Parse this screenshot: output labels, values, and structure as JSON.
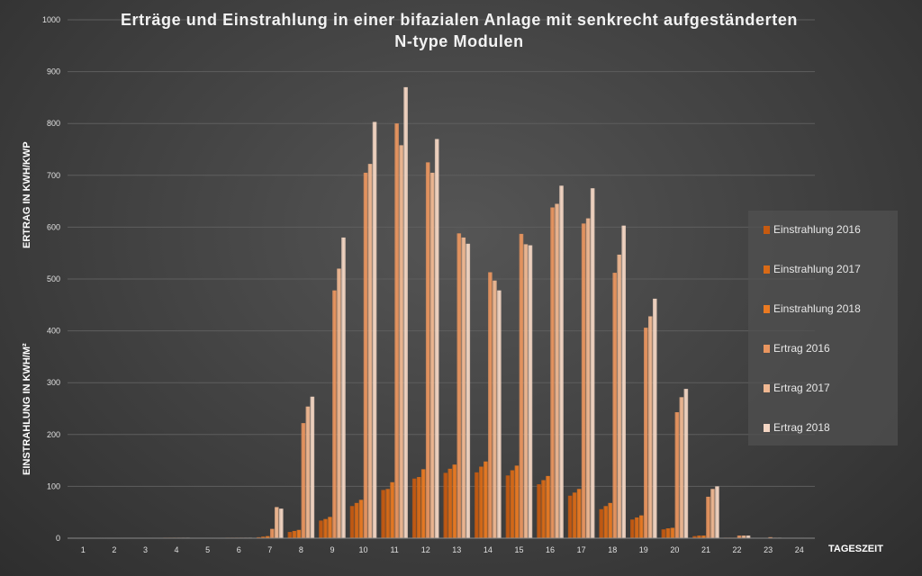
{
  "chart_data": {
    "type": "bar",
    "title_line1": "Erträge und Einstrahlung in einer bifazialen Anlage mit senkrecht aufgeständerten",
    "title_line2": "N-type Modulen",
    "ylabel_top": "ERTRAG IN KWH/KWP",
    "ylabel_bottom": "EINSTRAHLUNG IN KWH/M²",
    "xlabel": "TAGESZEIT",
    "ylim": [
      0,
      1000
    ],
    "yticks": [
      0,
      100,
      200,
      300,
      400,
      500,
      600,
      700,
      800,
      900,
      1000
    ],
    "categories": [
      "1",
      "2",
      "3",
      "4",
      "5",
      "6",
      "7",
      "8",
      "9",
      "10",
      "11",
      "12",
      "13",
      "14",
      "15",
      "16",
      "17",
      "18",
      "19",
      "20",
      "21",
      "22",
      "23",
      "24"
    ],
    "grid": true,
    "legend_position": "right",
    "series": [
      {
        "name": "Einstrahlung 2016",
        "color": "#c65a10",
        "values": [
          0,
          0,
          0,
          1,
          0,
          1,
          2,
          12,
          34,
          62,
          93,
          115,
          126,
          127,
          121,
          104,
          82,
          56,
          36,
          17,
          4,
          1,
          0,
          0
        ]
      },
      {
        "name": "Einstrahlung 2017",
        "color": "#d96a16",
        "values": [
          0,
          0,
          0,
          1,
          0,
          1,
          3,
          14,
          37,
          68,
          95,
          118,
          134,
          138,
          131,
          112,
          88,
          62,
          40,
          19,
          5,
          1,
          0,
          0
        ]
      },
      {
        "name": "Einstrahlung 2018",
        "color": "#ea7a22",
        "values": [
          0,
          0,
          0,
          1,
          0,
          1,
          4,
          16,
          41,
          74,
          108,
          133,
          142,
          148,
          140,
          120,
          95,
          68,
          44,
          20,
          5,
          1,
          0,
          0
        ]
      },
      {
        "name": "Ertrag 2016",
        "color": "#e9955f",
        "values": [
          0,
          0,
          0,
          1,
          0,
          1,
          18,
          222,
          478,
          705,
          800,
          725,
          588,
          513,
          587,
          638,
          607,
          512,
          406,
          243,
          80,
          5,
          2,
          0
        ]
      },
      {
        "name": "Ertrag 2017",
        "color": "#f0b892",
        "values": [
          0,
          0,
          0,
          1,
          0,
          1,
          60,
          254,
          520,
          722,
          758,
          705,
          580,
          497,
          567,
          645,
          617,
          547,
          428,
          272,
          95,
          5,
          1,
          0
        ]
      },
      {
        "name": "Ertrag 2018",
        "color": "#f4d6c3",
        "values": [
          0,
          0,
          0,
          1,
          0,
          1,
          57,
          273,
          580,
          803,
          870,
          770,
          568,
          478,
          565,
          680,
          675,
          603,
          462,
          288,
          100,
          5,
          1,
          0
        ]
      }
    ]
  }
}
